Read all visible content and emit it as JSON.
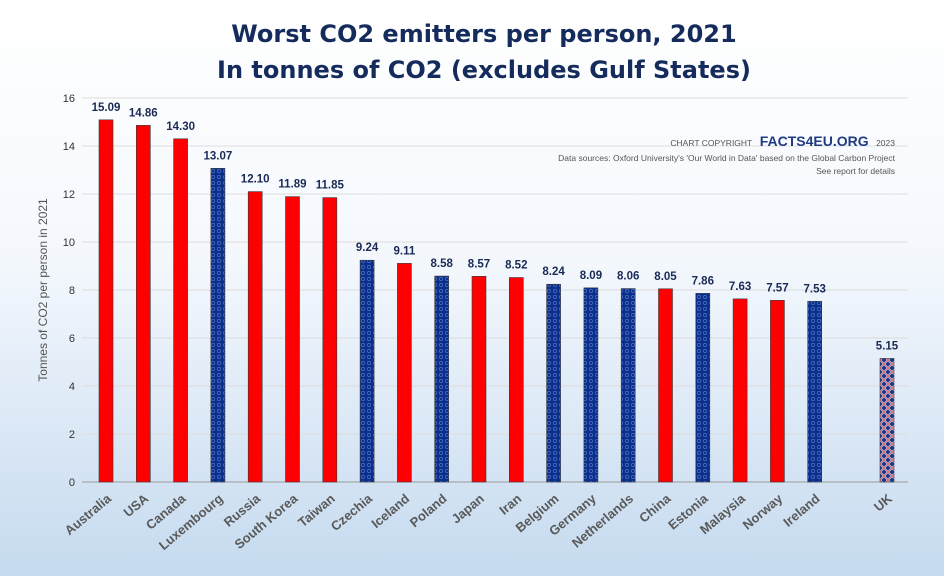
{
  "chart_data": {
    "type": "bar",
    "title": "Worst CO2 emitters per person, 2021",
    "subtitle": "In tonnes of CO2 (excludes Gulf States)",
    "xlabel": "",
    "ylabel": "Tonnes of CO2 per person in 2021",
    "ylim": [
      0,
      16
    ],
    "yticks": [
      0,
      2,
      4,
      6,
      8,
      10,
      12,
      14,
      16
    ],
    "grid": true,
    "categories": [
      "Australia",
      "USA",
      "Canada",
      "Luxembourg",
      "Russia",
      "South Korea",
      "Taiwan",
      "Czechia",
      "Iceland",
      "Poland",
      "Japan",
      "Iran",
      "Belgium",
      "Germany",
      "Netherlands",
      "China",
      "Estonia",
      "Malaysia",
      "Norway",
      "Ireland",
      "UK"
    ],
    "values": [
      15.09,
      14.86,
      14.3,
      13.07,
      12.1,
      11.89,
      11.85,
      9.24,
      9.11,
      8.58,
      8.57,
      8.52,
      8.24,
      8.09,
      8.06,
      8.05,
      7.86,
      7.63,
      7.57,
      7.53,
      5.15
    ],
    "value_labels": [
      "15.09",
      "14.86",
      "14.30",
      "13.07",
      "12.10",
      "11.89",
      "11.85",
      "9.24",
      "9.11",
      "8.58",
      "8.57",
      "8.52",
      "8.24",
      "8.09",
      "8.06",
      "8.05",
      "7.86",
      "7.63",
      "7.57",
      "7.53",
      "5.15"
    ],
    "bar_styles": [
      "red",
      "red",
      "red",
      "eu",
      "red",
      "red",
      "red",
      "eu",
      "red",
      "eu",
      "red",
      "red",
      "eu",
      "eu",
      "eu",
      "red",
      "eu",
      "red",
      "red",
      "eu",
      "uk"
    ],
    "colors": {
      "red": "#ff0000",
      "eu": "#0b2f8a",
      "uk": "#1b3a8a"
    }
  },
  "credit": {
    "prefix": "CHART COPYRIGHT",
    "brand": "FACTS4EU.ORG",
    "year": "2023",
    "line1": "Data sources: Oxford University's 'Our World in Data' based on the Global Carbon Project",
    "line2": "See report for details"
  }
}
